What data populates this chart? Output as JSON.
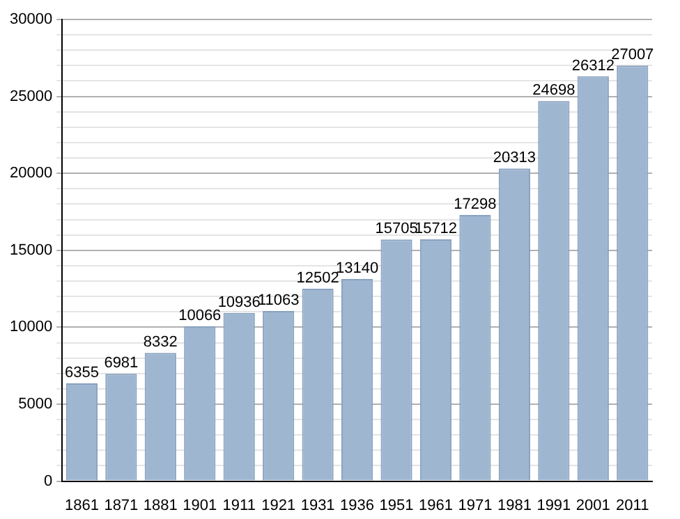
{
  "chart_data": {
    "type": "bar",
    "categories": [
      "1861",
      "1871",
      "1881",
      "1901",
      "1911",
      "1921",
      "1931",
      "1936",
      "1951",
      "1961",
      "1971",
      "1981",
      "1991",
      "2001",
      "2011"
    ],
    "values": [
      6355,
      6981,
      8332,
      10066,
      10936,
      11063,
      12502,
      13140,
      15705,
      15712,
      17298,
      20313,
      24698,
      26312,
      27007
    ],
    "color": "#9fb6d1",
    "ylim": [
      0,
      30000
    ],
    "yticks": [
      0,
      {
        "value": 1000,
        "label": null
      },
      {
        "value": 2000,
        "label": null
      },
      {
        "value": 3000,
        "label": null
      },
      {
        "value": 4000,
        "label": null
      },
      5000,
      {
        "value": 6000,
        "label": null
      },
      {
        "value": 7000,
        "label": null
      },
      {
        "value": 8000,
        "label": null
      },
      {
        "value": 9000,
        "label": null
      },
      10000,
      {
        "value": 11000,
        "label": null
      },
      {
        "value": 12000,
        "label": null
      },
      {
        "value": 13000,
        "label": null
      },
      {
        "value": 14000,
        "label": null
      },
      15000,
      {
        "value": 16000,
        "label": null
      },
      {
        "value": 17000,
        "label": null
      },
      {
        "value": 18000,
        "label": null
      },
      {
        "value": 19000,
        "label": null
      },
      20000,
      {
        "value": 21000,
        "label": null
      },
      {
        "value": 22000,
        "label": null
      },
      {
        "value": 23000,
        "label": null
      },
      {
        "value": 24000,
        "label": null
      },
      25000,
      {
        "value": 26000,
        "label": null
      },
      {
        "value": 27000,
        "label": null
      },
      {
        "value": 28000,
        "label": null
      },
      {
        "value": 29000,
        "label": null
      },
      30000
    ],
    "grid": "y",
    "data_labels": true
  }
}
